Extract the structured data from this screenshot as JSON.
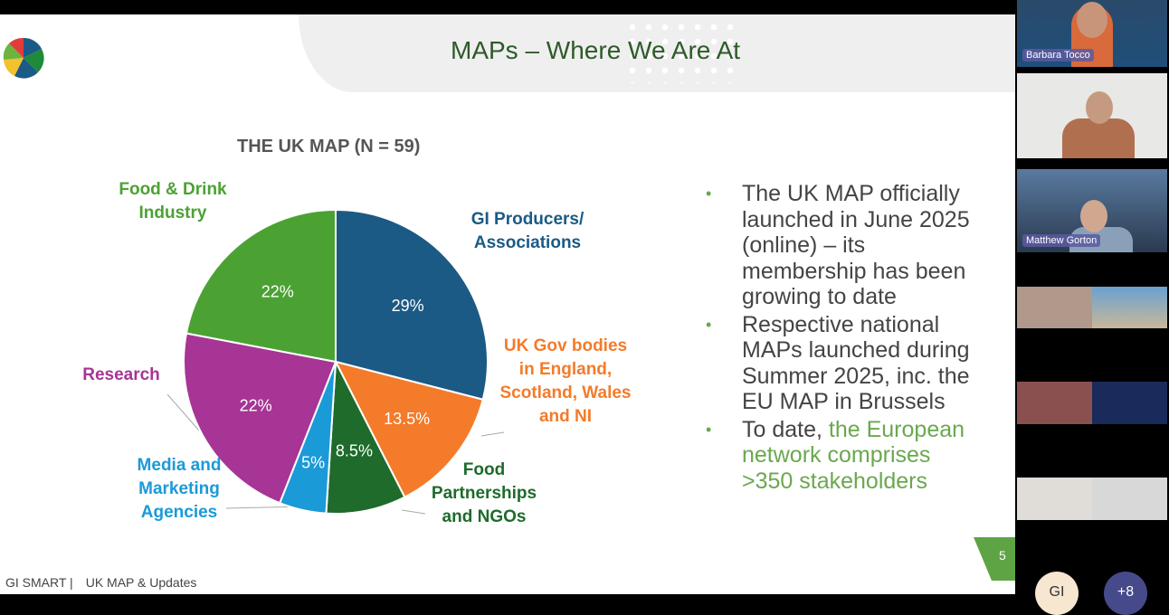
{
  "slide": {
    "title": "MAPs – Where We Are At",
    "footer_brand": "GI SMART |",
    "footer_text": "UK MAP & Updates",
    "page_number": "5",
    "bullets": [
      {
        "text": "The UK MAP officially launched in June 2025 (online) – its membership has been growing to date",
        "highlight": ""
      },
      {
        "text": "Respective national MAPs launched during Summer 2025, inc. the EU MAP in Brussels",
        "highlight": ""
      },
      {
        "text": "To date, ",
        "highlight": "the European network comprises >350 stakeholders"
      }
    ]
  },
  "chart_data": {
    "type": "pie",
    "title": "THE UK MAP (N = 59)",
    "slices": [
      {
        "label": "GI Producers/ Associations",
        "value": 29,
        "display": "29%",
        "color": "#1b5a85"
      },
      {
        "label": "UK Gov bodies in England, Scotland, Wales and NI",
        "value": 13.5,
        "display": "13.5%",
        "color": "#f47b2a"
      },
      {
        "label": "Food Partnerships and NGOs",
        "value": 8.5,
        "display": "8.5%",
        "color": "#1e6b2b"
      },
      {
        "label": "Media and Marketing Agencies",
        "value": 5,
        "display": "5%",
        "color": "#1b9ad8"
      },
      {
        "label": "Research",
        "value": 22,
        "display": "22%",
        "color": "#a63595"
      },
      {
        "label": "Food & Drink Industry",
        "value": 22,
        "display": "22%",
        "color": "#4ba233"
      }
    ]
  },
  "participants": [
    {
      "name": "Barbara Tocco"
    },
    {
      "name": ""
    },
    {
      "name": "Matthew Gorton"
    }
  ],
  "overflow": {
    "avatar": "GI",
    "more": "+8"
  }
}
